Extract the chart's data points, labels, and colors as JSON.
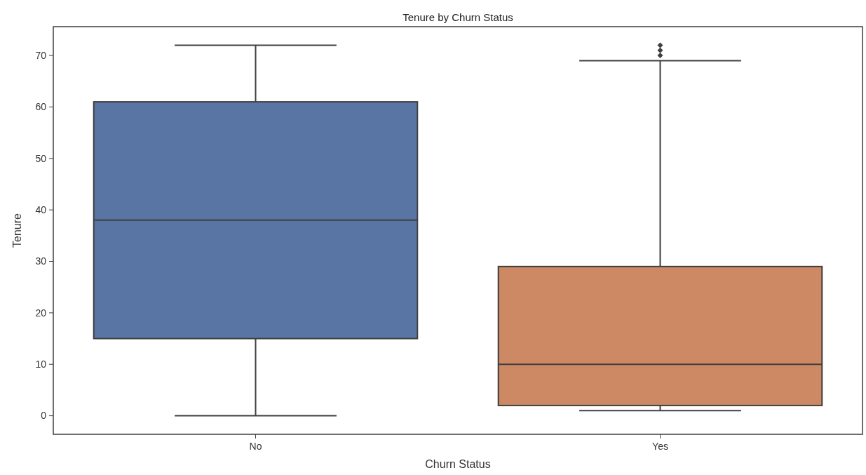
{
  "chart_data": {
    "type": "box",
    "title": "Tenure by Churn Status",
    "xlabel": "Churn Status",
    "ylabel": "Tenure",
    "categories": [
      "No",
      "Yes"
    ],
    "colors": [
      "#5875a4",
      "#cc8963"
    ],
    "boxes": [
      {
        "low": 0,
        "q1": 15,
        "median": 38,
        "q3": 61,
        "high": 72
      },
      {
        "low": 1,
        "q1": 2,
        "median": 10,
        "q3": 29,
        "high": 69,
        "outliers": [
          70,
          71,
          72
        ]
      }
    ],
    "ylim": [
      -3.6,
      75.6
    ],
    "yticks": [
      0,
      10,
      20,
      30,
      40,
      50,
      60,
      70
    ],
    "grid": false
  }
}
